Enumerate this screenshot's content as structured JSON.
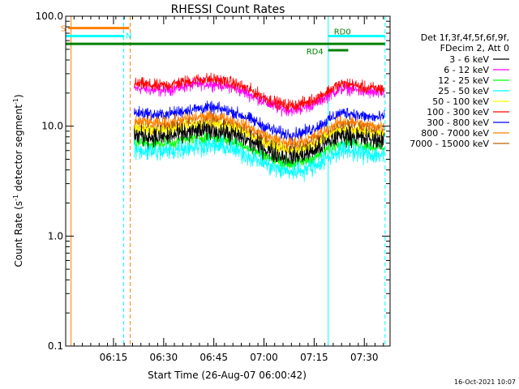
{
  "chart_data": {
    "type": "line",
    "title": "RHESSI Count Rates",
    "xlabel": "Start Time (26-Aug-07 06:00:42)",
    "ylabel_main": "Count Rate (s",
    "ylabel_sup1": "-1",
    "ylabel_mid": " detector segment",
    "ylabel_sup2": "-1",
    "ylabel_end": ")",
    "x_unit": "minutes since 06:00:42",
    "xlim": [
      0,
      97
    ],
    "ylim": [
      0.1,
      100
    ],
    "y_scale": "log",
    "y_ticks": [
      {
        "v": 0.1,
        "label": "0.1"
      },
      {
        "v": 1,
        "label": "1.0"
      },
      {
        "v": 10,
        "label": "10.0"
      },
      {
        "v": 100,
        "label": "100.0"
      }
    ],
    "x_ticks": [
      {
        "t": 14.3,
        "label": "06:15"
      },
      {
        "t": 29.3,
        "label": "06:30"
      },
      {
        "t": 44.3,
        "label": "06:45"
      },
      {
        "t": 59.3,
        "label": "07:00"
      },
      {
        "t": 74.3,
        "label": "07:15"
      },
      {
        "t": 89.3,
        "label": "07:30"
      }
    ],
    "legend_header": [
      "Det 1f,3f,4f,5f,6f,9f,",
      "FDecim 2, Att 0"
    ],
    "legend_position": "right",
    "series": [
      {
        "name": "3 - 6 keV",
        "color": "#000000",
        "level": 7.5
      },
      {
        "name": "6 - 12 keV",
        "color": "#ff00ff",
        "level": 20
      },
      {
        "name": "12 - 25 keV",
        "color": "#00ff00",
        "level": 6.5
      },
      {
        "name": "25 - 50 keV",
        "color": "#00ffff",
        "level": 5.5
      },
      {
        "name": "50 - 100 keV",
        "color": "#ffff00",
        "level": 8.5
      },
      {
        "name": "100 - 300 keV",
        "color": "#ff0000",
        "level": 22
      },
      {
        "name": "300 - 800 keV",
        "color": "#0000ff",
        "level": 12
      },
      {
        "name": "800 - 7000 keV",
        "color": "#ff8000",
        "level": 10
      },
      {
        "name": "7000 - 15000 keV",
        "color": "#c06000",
        "level": 9
      }
    ],
    "bars": [
      {
        "label": "S",
        "color": "#ff8000",
        "t0": 0.8,
        "t1": 19,
        "y": 78
      },
      {
        "label": "N",
        "color": "#00ffff",
        "t0": 0,
        "t1": 17.5,
        "y": 66
      },
      {
        "label": "",
        "color": "#008000",
        "t0": 0,
        "t1": 95.5,
        "y": 56
      },
      {
        "label": "RD0",
        "color": "#00ffff",
        "t0": 78.5,
        "t1": 95.5,
        "y": 66
      },
      {
        "label": "RD4",
        "color": "#008000",
        "t0": 78.5,
        "t1": 84.5,
        "y": 49
      }
    ],
    "vlines": [
      {
        "t": 0,
        "color": "#00ffff",
        "dash": false
      },
      {
        "t": 1.6,
        "color": "#ff8000",
        "dash": false
      },
      {
        "t": 17.3,
        "color": "#00ffff",
        "dash": true
      },
      {
        "t": 19.3,
        "color": "#ff8000",
        "dash": true
      },
      {
        "t": 78.5,
        "color": "#00ffff",
        "dash": false
      },
      {
        "t": 95.5,
        "color": "#00ffff",
        "dash": true
      }
    ],
    "date_stamp": "16-Oct-2021 10:07"
  }
}
